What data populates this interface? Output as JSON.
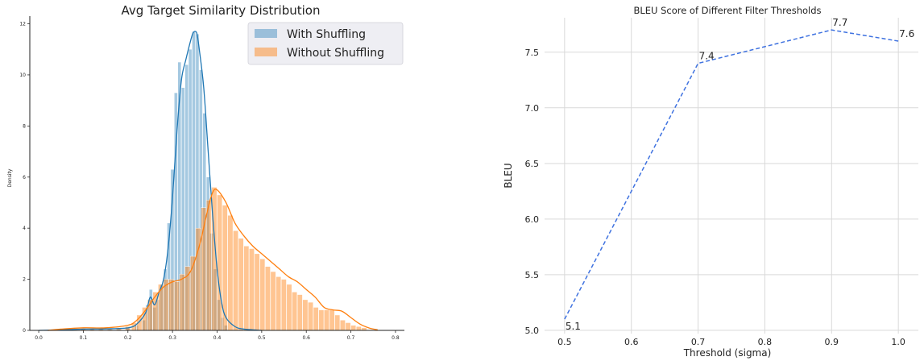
{
  "chart_data": [
    {
      "type": "histogram",
      "title": "Avg Target Similarity Distribution",
      "xlabel": "",
      "ylabel": "Density",
      "xlim": [
        -0.02,
        0.82
      ],
      "ylim": [
        0,
        12.3
      ],
      "xticks": [
        "0.0",
        "0.1",
        "0.2",
        "0.3",
        "0.4",
        "0.5",
        "0.6",
        "0.7",
        "0.8"
      ],
      "yticks": [
        "0",
        "2",
        "4",
        "6",
        "8",
        "10",
        "12"
      ],
      "grid": false,
      "legend_position": "top-right",
      "series": [
        {
          "name": "With Shuffling",
          "color": "#1f77b4",
          "bin_width": 0.008,
          "bin_centers": [
            0.1,
            0.12,
            0.14,
            0.16,
            0.18,
            0.2,
            0.22,
            0.236,
            0.244,
            0.252,
            0.26,
            0.268,
            0.276,
            0.284,
            0.292,
            0.3,
            0.308,
            0.316,
            0.324,
            0.332,
            0.34,
            0.348,
            0.356,
            0.364,
            0.372,
            0.38,
            0.388,
            0.396,
            0.404,
            0.412,
            0.42
          ],
          "values": [
            0.05,
            0.05,
            0.05,
            0.05,
            0.05,
            0.1,
            0.2,
            0.4,
            1.0,
            1.6,
            0.9,
            1.2,
            1.8,
            2.4,
            4.2,
            6.3,
            9.3,
            10.5,
            9.5,
            10.4,
            11.0,
            11.7,
            11.6,
            10.2,
            8.5,
            6.0,
            3.8,
            2.4,
            1.2,
            0.5,
            0.2
          ],
          "kde_x": [
            0.0,
            0.05,
            0.1,
            0.15,
            0.2,
            0.22,
            0.24,
            0.25,
            0.26,
            0.27,
            0.28,
            0.29,
            0.3,
            0.31,
            0.32,
            0.33,
            0.34,
            0.345,
            0.35,
            0.355,
            0.36,
            0.37,
            0.38,
            0.39,
            0.4,
            0.41,
            0.42,
            0.44,
            0.46,
            0.5
          ],
          "kde_y": [
            0.0,
            0.02,
            0.05,
            0.06,
            0.1,
            0.25,
            0.7,
            1.3,
            1.0,
            1.5,
            2.0,
            3.2,
            5.2,
            7.8,
            9.8,
            10.6,
            11.3,
            11.6,
            11.7,
            11.6,
            11.0,
            9.5,
            7.0,
            4.5,
            2.4,
            1.1,
            0.5,
            0.15,
            0.05,
            0.0
          ]
        },
        {
          "name": "Without Shuffling",
          "color": "#ff7f0e",
          "bin_width": 0.012,
          "bin_centers": [
            0.06,
            0.08,
            0.1,
            0.12,
            0.14,
            0.16,
            0.18,
            0.2,
            0.214,
            0.226,
            0.238,
            0.25,
            0.262,
            0.274,
            0.286,
            0.298,
            0.31,
            0.322,
            0.334,
            0.346,
            0.358,
            0.37,
            0.382,
            0.394,
            0.406,
            0.418,
            0.43,
            0.442,
            0.454,
            0.466,
            0.478,
            0.49,
            0.502,
            0.514,
            0.526,
            0.538,
            0.55,
            0.562,
            0.574,
            0.586,
            0.598,
            0.61,
            0.622,
            0.634,
            0.646,
            0.658,
            0.67,
            0.682,
            0.694,
            0.706,
            0.718,
            0.73
          ],
          "values": [
            0.05,
            0.05,
            0.05,
            0.05,
            0.05,
            0.05,
            0.1,
            0.15,
            0.3,
            0.6,
            0.9,
            1.2,
            1.5,
            1.8,
            2.0,
            2.0,
            1.9,
            2.2,
            2.5,
            2.9,
            4.0,
            4.8,
            5.1,
            5.6,
            5.3,
            4.9,
            4.5,
            3.9,
            3.6,
            3.3,
            3.2,
            3.0,
            2.8,
            2.5,
            2.3,
            2.1,
            2.0,
            1.8,
            1.5,
            1.4,
            1.2,
            1.1,
            0.9,
            0.8,
            0.8,
            0.8,
            0.6,
            0.4,
            0.3,
            0.2,
            0.15,
            0.1
          ],
          "kde_x": [
            0.02,
            0.05,
            0.1,
            0.15,
            0.2,
            0.22,
            0.24,
            0.26,
            0.28,
            0.3,
            0.32,
            0.34,
            0.36,
            0.38,
            0.39,
            0.4,
            0.42,
            0.44,
            0.46,
            0.48,
            0.5,
            0.52,
            0.54,
            0.56,
            0.58,
            0.6,
            0.62,
            0.64,
            0.66,
            0.68,
            0.7,
            0.72,
            0.74,
            0.76
          ],
          "kde_y": [
            0.0,
            0.05,
            0.1,
            0.1,
            0.2,
            0.4,
            0.8,
            1.3,
            1.7,
            1.9,
            2.0,
            2.3,
            3.3,
            4.8,
            5.4,
            5.5,
            5.0,
            4.2,
            3.7,
            3.3,
            3.0,
            2.7,
            2.4,
            2.1,
            1.9,
            1.6,
            1.3,
            0.9,
            0.8,
            0.75,
            0.5,
            0.25,
            0.1,
            0.02
          ]
        }
      ]
    },
    {
      "type": "line",
      "title": "BLEU Score of Different Filter Thresholds",
      "xlabel": "Threshold (sigma)",
      "ylabel": "BLEU",
      "xlim": [
        0.47,
        1.03
      ],
      "ylim": [
        4.97,
        7.81
      ],
      "xticks": [
        "0.5",
        "0.6",
        "0.7",
        "0.8",
        "0.9",
        "1.0"
      ],
      "yticks": [
        "5.0",
        "5.5",
        "6.0",
        "6.5",
        "7.0",
        "7.5"
      ],
      "grid": true,
      "line_style": "dashed",
      "color": "#3f72e0",
      "x": [
        0.5,
        0.7,
        0.9,
        1.0
      ],
      "y": [
        5.1,
        7.4,
        7.7,
        7.6
      ],
      "point_labels": [
        "5.1",
        "7.4",
        "7.7",
        "7.6"
      ]
    }
  ]
}
